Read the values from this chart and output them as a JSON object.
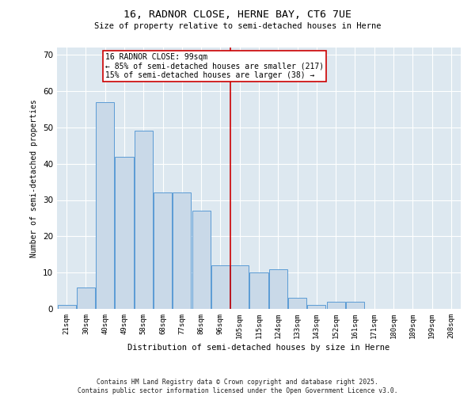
{
  "title1": "16, RADNOR CLOSE, HERNE BAY, CT6 7UE",
  "title2": "Size of property relative to semi-detached houses in Herne",
  "xlabel": "Distribution of semi-detached houses by size in Herne",
  "ylabel": "Number of semi-detached properties",
  "categories": [
    "21sqm",
    "30sqm",
    "40sqm",
    "49sqm",
    "58sqm",
    "68sqm",
    "77sqm",
    "86sqm",
    "96sqm",
    "105sqm",
    "115sqm",
    "124sqm",
    "133sqm",
    "143sqm",
    "152sqm",
    "161sqm",
    "171sqm",
    "180sqm",
    "189sqm",
    "199sqm",
    "208sqm"
  ],
  "values": [
    1,
    6,
    57,
    42,
    49,
    32,
    32,
    27,
    12,
    12,
    10,
    11,
    3,
    1,
    2,
    2,
    0,
    0,
    0,
    0,
    0
  ],
  "bar_color": "#c9d9e8",
  "bar_edge_color": "#5b9bd5",
  "vline_color": "#cc0000",
  "annotation_text": "16 RADNOR CLOSE: 99sqm\n← 85% of semi-detached houses are smaller (217)\n15% of semi-detached houses are larger (38) →",
  "annotation_box_color": "#cc0000",
  "ylim": [
    0,
    72
  ],
  "yticks": [
    0,
    10,
    20,
    30,
    40,
    50,
    60,
    70
  ],
  "bg_color": "#dde8f0",
  "footer": "Contains HM Land Registry data © Crown copyright and database right 2025.\nContains public sector information licensed under the Open Government Licence v3.0."
}
